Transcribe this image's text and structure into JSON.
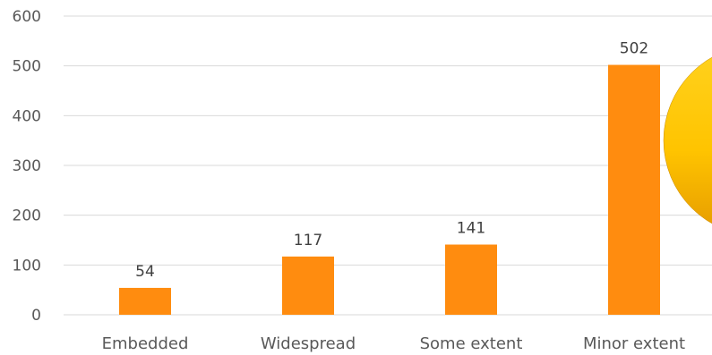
{
  "chart_data": {
    "type": "bar",
    "title": "",
    "xlabel": "",
    "ylabel": "",
    "categories": [
      "Embedded",
      "Widespread",
      "Some extent",
      "Minor extent"
    ],
    "values": [
      54,
      117,
      141,
      502
    ],
    "data_labels": [
      "54",
      "117",
      "141",
      "502"
    ],
    "yticks": [
      "0",
      "100",
      "200",
      "300",
      "400",
      "500",
      "600"
    ],
    "ylim": [
      0,
      600
    ],
    "grid": true,
    "legend": "none",
    "colors": {
      "bar": "#ff8c0f",
      "grid": "#d9d9d9",
      "decoration_light": "#ffd21f",
      "decoration_dark": "#e59a00"
    }
  }
}
